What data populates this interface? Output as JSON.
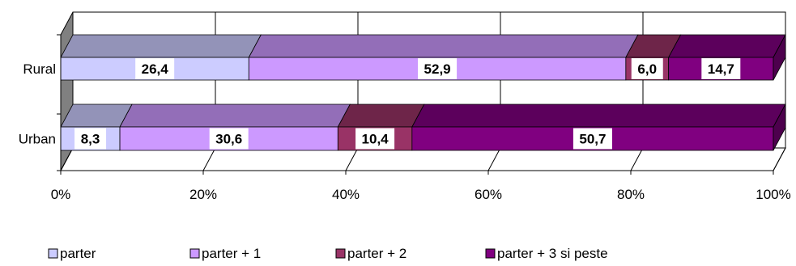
{
  "chart_data": {
    "type": "bar",
    "orientation": "horizontal",
    "stacked": "percent",
    "three_d": true,
    "categories": [
      "Rural",
      "Urban"
    ],
    "series": [
      {
        "name": "parter",
        "values": [
          26.4,
          8.3
        ],
        "color": "#ccccff"
      },
      {
        "name": "parter + 1",
        "values": [
          52.9,
          30.6
        ],
        "color": "#cc99ff"
      },
      {
        "name": "parter + 2",
        "values": [
          6.0,
          10.4
        ],
        "color": "#993366"
      },
      {
        "name": "parter + 3 si peste",
        "values": [
          14.7,
          50.7
        ],
        "color": "#800080"
      }
    ],
    "data_labels": [
      [
        "26,4",
        "52,9",
        "6,0",
        "14,7"
      ],
      [
        "8,3",
        "30,6",
        "10,4",
        "50,7"
      ]
    ],
    "x_ticks": [
      "0%",
      "20%",
      "40%",
      "60%",
      "80%",
      "100%"
    ],
    "xlim": [
      0,
      100
    ],
    "grid": true,
    "legend": "bottom",
    "title": "",
    "xlabel": "",
    "ylabel": ""
  }
}
